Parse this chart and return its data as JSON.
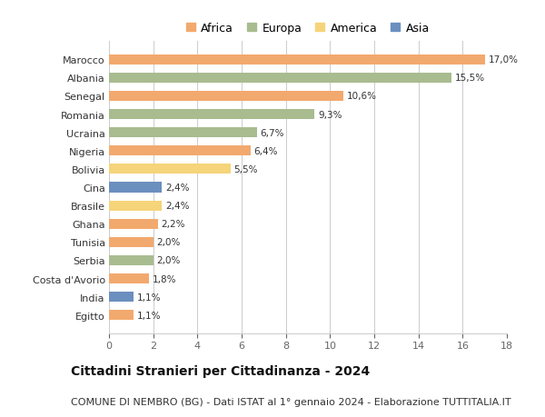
{
  "categories": [
    "Egitto",
    "India",
    "Costa d'Avorio",
    "Serbia",
    "Tunisia",
    "Ghana",
    "Brasile",
    "Cina",
    "Bolivia",
    "Nigeria",
    "Ucraina",
    "Romania",
    "Senegal",
    "Albania",
    "Marocco"
  ],
  "values": [
    1.1,
    1.1,
    1.8,
    2.0,
    2.0,
    2.2,
    2.4,
    2.4,
    5.5,
    6.4,
    6.7,
    9.3,
    10.6,
    15.5,
    17.0
  ],
  "bar_colors": [
    "#F2A96E",
    "#6B8FBF",
    "#F2A96E",
    "#A8BC8F",
    "#F2A96E",
    "#F2A96E",
    "#F5D47A",
    "#6B8FBF",
    "#F5D47A",
    "#F2A96E",
    "#A8BC8F",
    "#A8BC8F",
    "#F2A96E",
    "#A8BC8F",
    "#F2A96E"
  ],
  "labels": [
    "1,1%",
    "1,1%",
    "1,8%",
    "2,0%",
    "2,0%",
    "2,2%",
    "2,4%",
    "2,4%",
    "5,5%",
    "6,4%",
    "6,7%",
    "9,3%",
    "10,6%",
    "15,5%",
    "17,0%"
  ],
  "xlim": [
    0,
    18
  ],
  "xticks": [
    0,
    2,
    4,
    6,
    8,
    10,
    12,
    14,
    16,
    18
  ],
  "title": "Cittadini Stranieri per Cittadinanza - 2024",
  "subtitle": "COMUNE DI NEMBRO (BG) - Dati ISTAT al 1° gennaio 2024 - Elaborazione TUTTITALIA.IT",
  "legend_order": [
    "Africa",
    "Europa",
    "America",
    "Asia"
  ],
  "legend_colors": [
    "#F2A96E",
    "#A8BC8F",
    "#F5D47A",
    "#6B8FBF"
  ],
  "background_color": "#ffffff",
  "grid_color": "#cccccc",
  "title_fontsize": 10,
  "subtitle_fontsize": 8,
  "label_fontsize": 7.5,
  "tick_fontsize": 8,
  "legend_fontsize": 9,
  "bar_height": 0.55
}
